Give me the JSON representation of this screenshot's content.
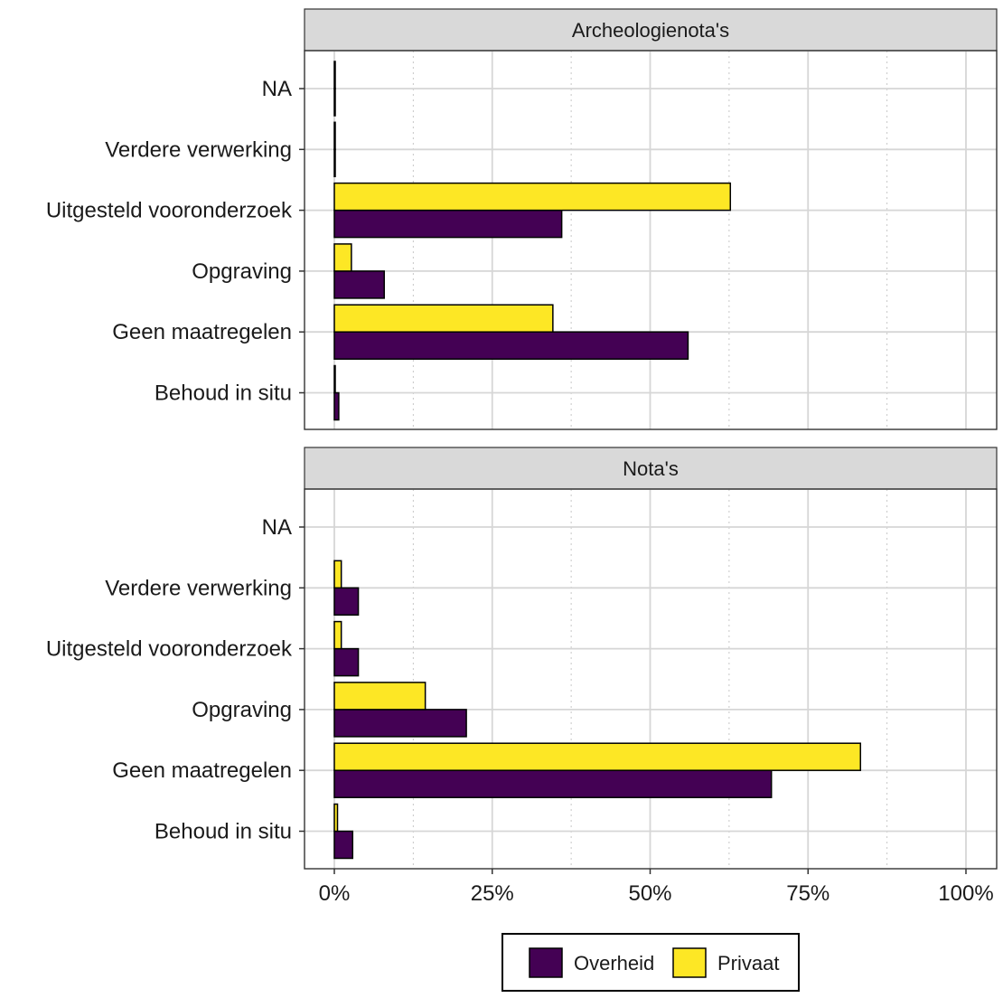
{
  "chart_data": {
    "type": "bar",
    "orientation": "horizontal",
    "categories": [
      "Behoud in situ",
      "Geen maatregelen",
      "Opgraving",
      "Uitgesteld vooronderzoek",
      "Verdere verwerking",
      "NA"
    ],
    "xlim": [
      0,
      1
    ],
    "x_ticks": [
      {
        "value": 0,
        "label": "0%"
      },
      {
        "value": 0.25,
        "label": "25%"
      },
      {
        "value": 0.5,
        "label": "50%"
      },
      {
        "value": 0.75,
        "label": "75%"
      },
      {
        "value": 1,
        "label": "100%"
      }
    ],
    "grid": true,
    "legend_position": "bottom",
    "colors": {
      "Overheid": "#440154",
      "Privaat": "#fde725"
    },
    "legend": [
      {
        "key": "Overheid",
        "label": "Overheid"
      },
      {
        "key": "Privaat",
        "label": "Privaat"
      }
    ],
    "panels": [
      {
        "title": "Archeologienota's",
        "series": [
          {
            "name": "Overheid",
            "values": [
              0.007,
              0.56,
              0.079,
              0.36,
              0.001,
              0.001
            ]
          },
          {
            "name": "Privaat",
            "values": [
              0.001,
              0.346,
              0.027,
              0.627,
              0.001,
              0.001
            ]
          }
        ]
      },
      {
        "title": "Nota's",
        "series": [
          {
            "name": "Overheid",
            "values": [
              0.029,
              0.692,
              0.209,
              0.038,
              0.038,
              0
            ]
          },
          {
            "name": "Privaat",
            "values": [
              0.005,
              0.833,
              0.144,
              0.011,
              0.011,
              0
            ]
          }
        ]
      }
    ]
  }
}
